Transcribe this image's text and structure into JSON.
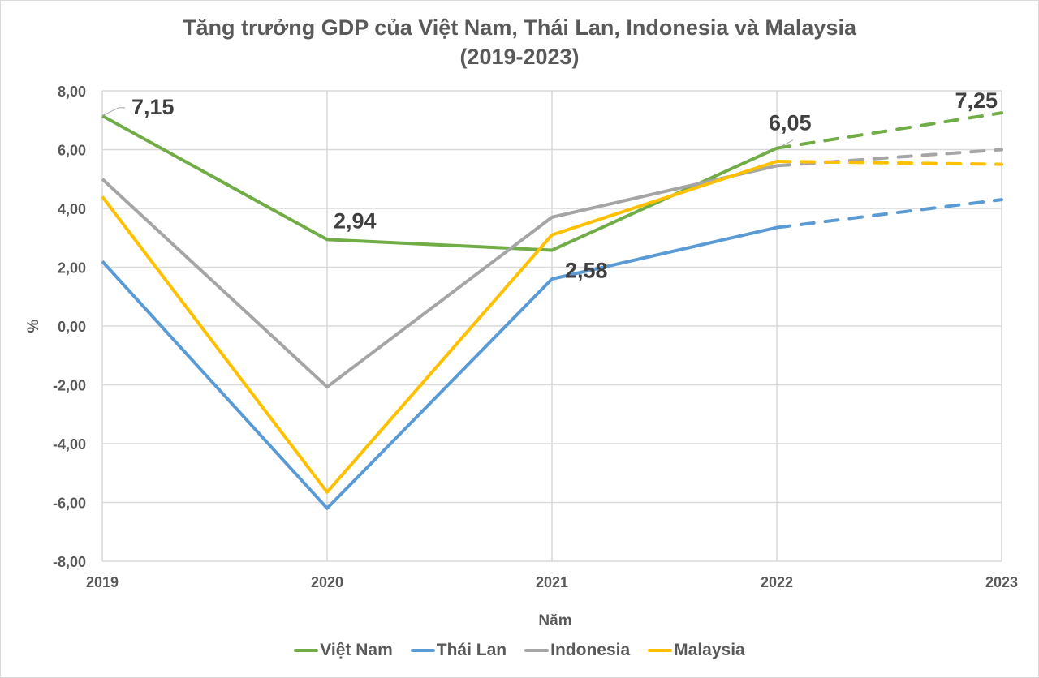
{
  "chart_data": {
    "type": "line",
    "title": "Tăng trưởng GDP của Việt Nam, Thái Lan, Indonesia và Malaysia",
    "subtitle": "(2019-2023)",
    "xlabel": "Năm",
    "ylabel": "%",
    "ylim": [
      -8,
      8
    ],
    "yticks": [
      "8,00",
      "6,00",
      "4,00",
      "2,00",
      "0,00",
      "-2,00",
      "-4,00",
      "-6,00",
      "-8,00"
    ],
    "categories": [
      "2019",
      "2020",
      "2021",
      "2022",
      "2023"
    ],
    "grid": true,
    "legend_position": "bottom",
    "note": "Segment 2022-2023 drawn dashed (forecast)",
    "series": [
      {
        "name": "Việt Nam",
        "color": "#70ad47",
        "values": [
          7.15,
          2.94,
          2.58,
          6.05,
          7.25
        ]
      },
      {
        "name": "Thái Lan",
        "color": "#5b9bd5",
        "values": [
          2.2,
          -6.2,
          1.6,
          3.35,
          4.3
        ]
      },
      {
        "name": "Indonesia",
        "color": "#a5a5a5",
        "values": [
          5.0,
          -2.07,
          3.7,
          5.45,
          6.0
        ]
      },
      {
        "name": "Malaysia",
        "color": "#ffc000",
        "values": [
          4.4,
          -5.65,
          3.1,
          5.6,
          5.5
        ]
      }
    ],
    "data_labels": [
      {
        "series": "Việt Nam",
        "category": "2019",
        "text": "7,15"
      },
      {
        "series": "Việt Nam",
        "category": "2020",
        "text": "2,94"
      },
      {
        "series": "Việt Nam",
        "category": "2021",
        "text": "2,58"
      },
      {
        "series": "Việt Nam",
        "category": "2022",
        "text": "6,05"
      },
      {
        "series": "Việt Nam",
        "category": "2023",
        "text": "7,25"
      }
    ]
  },
  "legend": {
    "items": [
      {
        "label": "Việt Nam",
        "color": "#70ad47"
      },
      {
        "label": "Thái Lan",
        "color": "#5b9bd5"
      },
      {
        "label": "Indonesia",
        "color": "#a5a5a5"
      },
      {
        "label": "Malaysia",
        "color": "#ffc000"
      }
    ]
  }
}
